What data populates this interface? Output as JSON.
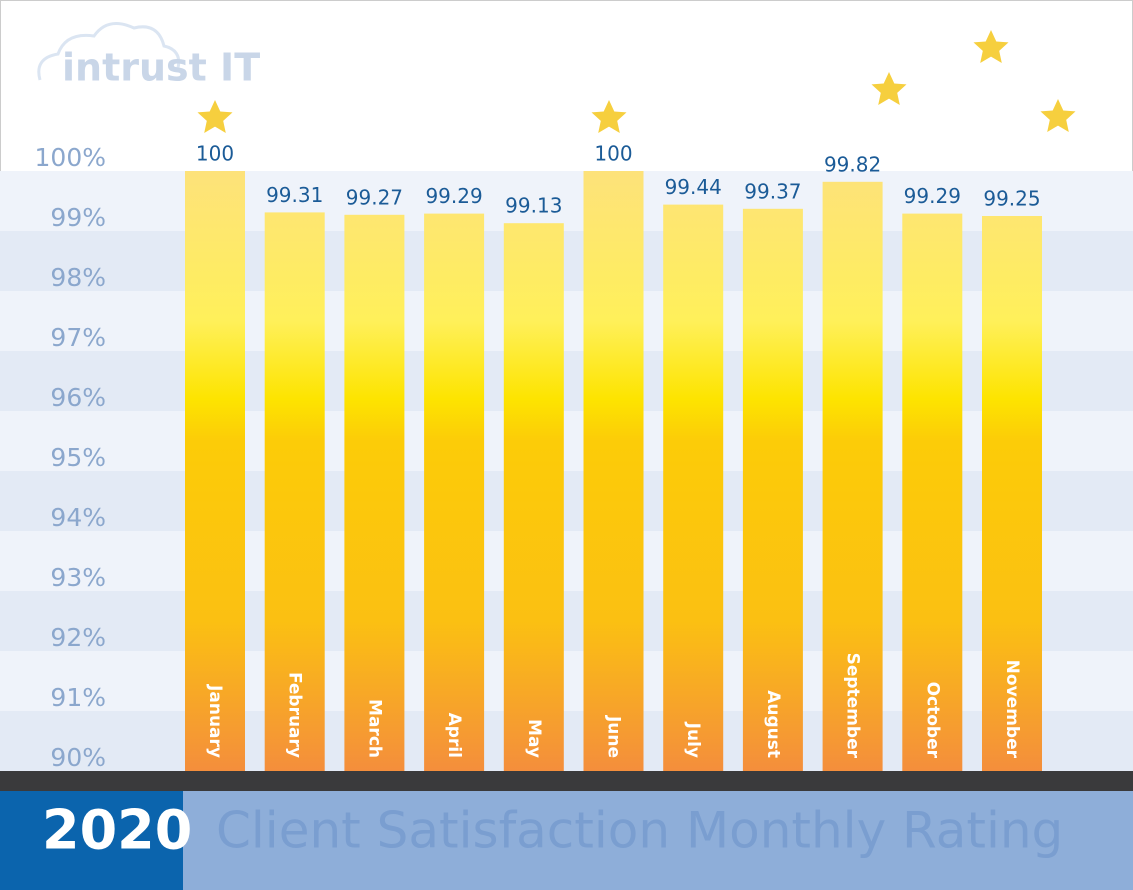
{
  "chart_data": {
    "type": "bar",
    "brand": "intrust IT",
    "year": "2020",
    "title": "Client Satisfaction Monthly Rating",
    "categories": [
      "January",
      "February",
      "March",
      "April",
      "May",
      "June",
      "July",
      "August",
      "September",
      "October",
      "November"
    ],
    "values": [
      100,
      99.31,
      99.27,
      99.29,
      99.13,
      100,
      99.44,
      99.37,
      99.82,
      99.29,
      99.25
    ],
    "ylim": [
      90,
      100
    ],
    "yticks": [
      {
        "value": 90,
        "label": "90%"
      },
      {
        "value": 91,
        "label": "91%"
      },
      {
        "value": 92,
        "label": "92%"
      },
      {
        "value": 93,
        "label": "93%"
      },
      {
        "value": 94,
        "label": "94%"
      },
      {
        "value": 95,
        "label": "95%"
      },
      {
        "value": 96,
        "label": "96%"
      },
      {
        "value": 97,
        "label": "97%"
      },
      {
        "value": 98,
        "label": "98%"
      },
      {
        "value": 99,
        "label": "99%"
      },
      {
        "value": 100,
        "label": "100%"
      }
    ],
    "grid": true
  }
}
